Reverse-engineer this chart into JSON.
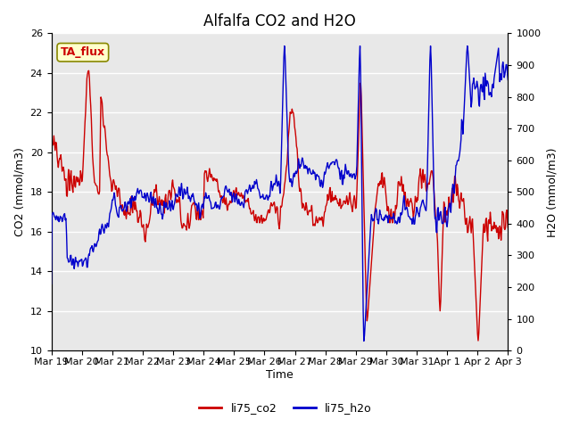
{
  "title": "Alfalfa CO2 and H2O",
  "xlabel": "Time",
  "ylabel_left": "CO2 (mmol/m3)",
  "ylabel_right": "H2O (mmol/m3)",
  "ylim_left": [
    10,
    26
  ],
  "ylim_right": [
    0,
    1000
  ],
  "yticks_left": [
    10,
    12,
    14,
    16,
    18,
    20,
    22,
    24,
    26
  ],
  "yticks_right": [
    0,
    100,
    200,
    300,
    400,
    500,
    600,
    700,
    800,
    900,
    1000
  ],
  "xtick_labels": [
    "Mar 19",
    "Mar 20",
    "Mar 21",
    "Mar 22",
    "Mar 23",
    "Mar 24",
    "Mar 25",
    "Mar 26",
    "Mar 27",
    "Mar 28",
    "Mar 29",
    "Mar 30",
    "Mar 31",
    "Apr 1",
    "Apr 2",
    "Apr 3"
  ],
  "color_co2": "#cc0000",
  "color_h2o": "#0000cc",
  "plot_bg": "#e8e8e8",
  "annotation_text": "TA_flux",
  "annotation_color": "#cc0000",
  "annotation_bg": "#ffffcc",
  "legend_labels": [
    "li75_co2",
    "li75_h2o"
  ],
  "title_fontsize": 12,
  "axis_fontsize": 9,
  "tick_fontsize": 8,
  "linewidth": 1.0
}
